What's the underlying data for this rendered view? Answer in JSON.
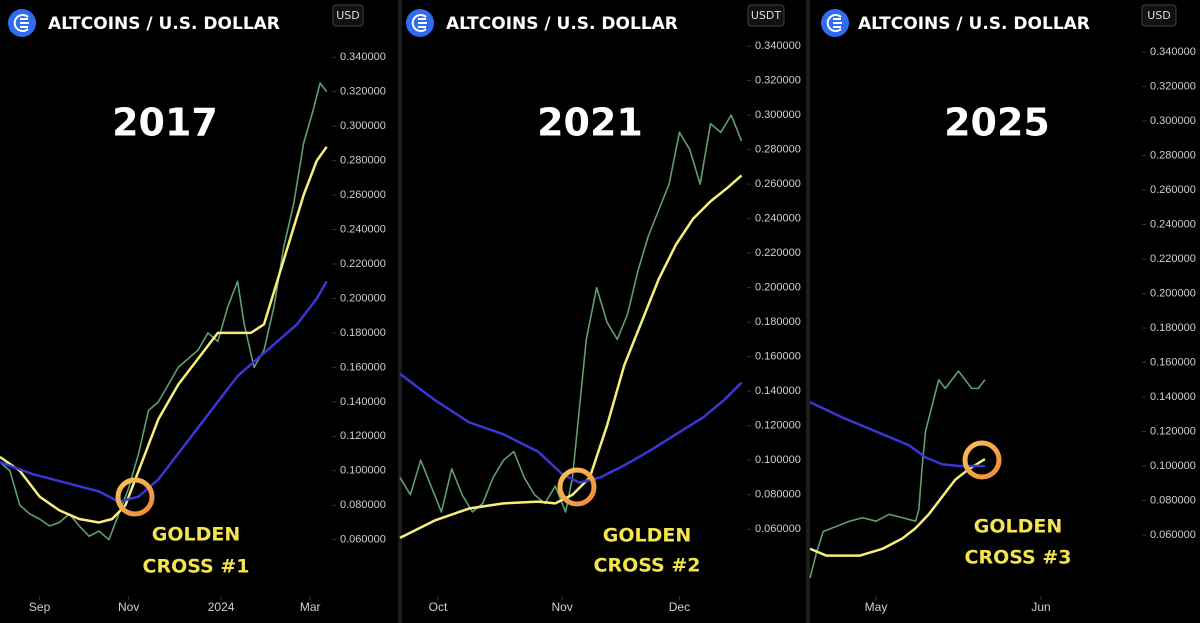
{
  "chart_data": [
    {
      "type": "line",
      "header": "ALTCOINS / U.S. DOLLAR",
      "currency": "USD",
      "title": "2017",
      "annotation": [
        "GOLDEN",
        "CROSS #1"
      ],
      "xlim": [
        0,
        100
      ],
      "ylim": [
        0.025,
        0.35
      ],
      "xticks": [
        {
          "value": 12,
          "label": "Sep"
        },
        {
          "value": 39,
          "label": "Nov"
        },
        {
          "value": 67,
          "label": "2024"
        },
        {
          "value": 94,
          "label": "Mar"
        }
      ],
      "yticks": [
        {
          "value": 0.06,
          "label": "0.060000"
        },
        {
          "value": 0.08,
          "label": "0.080000"
        },
        {
          "value": 0.1,
          "label": "0.100000"
        },
        {
          "value": 0.12,
          "label": "0.120000"
        },
        {
          "value": 0.14,
          "label": "0.140000"
        },
        {
          "value": 0.16,
          "label": "0.160000"
        },
        {
          "value": 0.18,
          "label": "0.180000"
        },
        {
          "value": 0.2,
          "label": "0.200000"
        },
        {
          "value": 0.22,
          "label": "0.220000"
        },
        {
          "value": 0.24,
          "label": "0.240000"
        },
        {
          "value": 0.26,
          "label": "0.260000"
        },
        {
          "value": 0.28,
          "label": "0.280000"
        },
        {
          "value": 0.3,
          "label": "0.300000"
        },
        {
          "value": 0.32,
          "label": "0.320000"
        },
        {
          "value": 0.34,
          "label": "0.340000"
        }
      ],
      "series": [
        {
          "color": "#5f9e6e",
          "x": [
            0,
            3,
            6,
            9,
            12,
            15,
            18,
            21,
            24,
            27,
            30,
            33,
            36,
            39,
            42,
            45,
            48,
            51,
            54,
            57,
            60,
            63,
            66,
            69,
            72,
            74,
            77,
            80,
            83,
            86,
            89,
            92,
            95,
            97,
            99
          ],
          "values": [
            0.105,
            0.1,
            0.08,
            0.075,
            0.072,
            0.068,
            0.07,
            0.075,
            0.068,
            0.062,
            0.065,
            0.06,
            0.075,
            0.09,
            0.11,
            0.135,
            0.14,
            0.15,
            0.16,
            0.165,
            0.17,
            0.18,
            0.175,
            0.195,
            0.21,
            0.185,
            0.16,
            0.17,
            0.195,
            0.23,
            0.255,
            0.29,
            0.31,
            0.325,
            0.32
          ]
        },
        {
          "color": "#f6f07a",
          "x": [
            0,
            6,
            12,
            18,
            24,
            30,
            34,
            38,
            42,
            48,
            54,
            60,
            66,
            72,
            76,
            80,
            84,
            88,
            92,
            96,
            99
          ],
          "values": [
            0.108,
            0.1,
            0.085,
            0.077,
            0.072,
            0.07,
            0.072,
            0.08,
            0.1,
            0.13,
            0.15,
            0.165,
            0.18,
            0.18,
            0.18,
            0.185,
            0.21,
            0.235,
            0.26,
            0.28,
            0.288
          ]
        },
        {
          "color": "#3a36d6",
          "x": [
            0,
            10,
            20,
            30,
            36,
            42,
            48,
            54,
            60,
            66,
            72,
            78,
            84,
            90,
            96,
            99
          ],
          "values": [
            0.105,
            0.098,
            0.093,
            0.088,
            0.082,
            0.085,
            0.095,
            0.11,
            0.125,
            0.14,
            0.155,
            0.165,
            0.175,
            0.185,
            0.2,
            0.21
          ]
        }
      ]
    },
    {
      "type": "line",
      "header": "ALTCOINS / U.S. DOLLAR",
      "currency": "USDT",
      "title": "2021",
      "annotation": [
        "GOLDEN",
        "CROSS #2"
      ],
      "xlim": [
        0,
        100
      ],
      "ylim": [
        0.019,
        0.3435
      ],
      "xticks": [
        {
          "value": 11,
          "label": "Oct"
        },
        {
          "value": 47,
          "label": "Nov"
        },
        {
          "value": 81,
          "label": "Dec"
        }
      ],
      "yticks": [
        {
          "value": 0.06,
          "label": "0.060000"
        },
        {
          "value": 0.08,
          "label": "0.080000"
        },
        {
          "value": 0.1,
          "label": "0.100000"
        },
        {
          "value": 0.12,
          "label": "0.120000"
        },
        {
          "value": 0.14,
          "label": "0.140000"
        },
        {
          "value": 0.16,
          "label": "0.160000"
        },
        {
          "value": 0.18,
          "label": "0.180000"
        },
        {
          "value": 0.2,
          "label": "0.200000"
        },
        {
          "value": 0.22,
          "label": "0.220000"
        },
        {
          "value": 0.24,
          "label": "0.240000"
        },
        {
          "value": 0.26,
          "label": "0.260000"
        },
        {
          "value": 0.28,
          "label": "0.280000"
        },
        {
          "value": 0.3,
          "label": "0.300000"
        },
        {
          "value": 0.32,
          "label": "0.320000"
        },
        {
          "value": 0.34,
          "label": "0.340000"
        }
      ],
      "series": [
        {
          "color": "#5f9e6e",
          "x": [
            0,
            3,
            6,
            9,
            12,
            15,
            18,
            21,
            24,
            27,
            30,
            33,
            36,
            39,
            42,
            45,
            48,
            50,
            52,
            54,
            57,
            60,
            63,
            66,
            69,
            72,
            75,
            78,
            81,
            84,
            87,
            90,
            93,
            96,
            99
          ],
          "values": [
            0.09,
            0.08,
            0.1,
            0.085,
            0.07,
            0.095,
            0.08,
            0.07,
            0.075,
            0.09,
            0.1,
            0.105,
            0.09,
            0.08,
            0.075,
            0.085,
            0.07,
            0.09,
            0.13,
            0.17,
            0.2,
            0.18,
            0.17,
            0.185,
            0.21,
            0.23,
            0.245,
            0.26,
            0.29,
            0.28,
            0.26,
            0.295,
            0.29,
            0.3,
            0.285
          ]
        },
        {
          "color": "#f6f07a",
          "x": [
            0,
            10,
            20,
            30,
            40,
            45,
            50,
            55,
            60,
            65,
            70,
            75,
            80,
            85,
            90,
            95,
            99
          ],
          "values": [
            0.055,
            0.065,
            0.072,
            0.075,
            0.076,
            0.075,
            0.08,
            0.09,
            0.12,
            0.155,
            0.18,
            0.205,
            0.225,
            0.24,
            0.25,
            0.258,
            0.265
          ]
        },
        {
          "color": "#3a36d6",
          "x": [
            0,
            10,
            20,
            30,
            40,
            47,
            52,
            58,
            65,
            72,
            80,
            88,
            94,
            99
          ],
          "values": [
            0.15,
            0.135,
            0.122,
            0.115,
            0.105,
            0.092,
            0.087,
            0.09,
            0.097,
            0.105,
            0.115,
            0.125,
            0.135,
            0.145
          ]
        }
      ]
    },
    {
      "type": "line",
      "header": "ALTCOINS / U.S. DOLLAR",
      "currency": "USD",
      "title": "2025",
      "annotation": [
        "GOLDEN",
        "CROSS #3"
      ],
      "xlim": [
        0,
        100
      ],
      "ylim": [
        0.0223,
        0.347
      ],
      "xticks": [
        {
          "value": 20,
          "label": "May"
        },
        {
          "value": 70,
          "label": "Jun"
        }
      ],
      "yticks": [
        {
          "value": 0.06,
          "label": "0.060000"
        },
        {
          "value": 0.08,
          "label": "0.080000"
        },
        {
          "value": 0.1,
          "label": "0.100000"
        },
        {
          "value": 0.12,
          "label": "0.120000"
        },
        {
          "value": 0.14,
          "label": "0.140000"
        },
        {
          "value": 0.16,
          "label": "0.160000"
        },
        {
          "value": 0.18,
          "label": "0.180000"
        },
        {
          "value": 0.2,
          "label": "0.200000"
        },
        {
          "value": 0.22,
          "label": "0.220000"
        },
        {
          "value": 0.24,
          "label": "0.240000"
        },
        {
          "value": 0.26,
          "label": "0.260000"
        },
        {
          "value": 0.28,
          "label": "0.280000"
        },
        {
          "value": 0.3,
          "label": "0.300000"
        },
        {
          "value": 0.32,
          "label": "0.320000"
        },
        {
          "value": 0.34,
          "label": "0.340000"
        }
      ],
      "series": [
        {
          "color": "#5f9e6e",
          "x": [
            0,
            2,
            4,
            8,
            12,
            16,
            20,
            24,
            28,
            32,
            33,
            34,
            35,
            37,
            39,
            41,
            43,
            45,
            47,
            49,
            51,
            53
          ],
          "values": [
            0.035,
            0.05,
            0.062,
            0.065,
            0.068,
            0.07,
            0.068,
            0.072,
            0.07,
            0.068,
            0.075,
            0.1,
            0.12,
            0.135,
            0.15,
            0.145,
            0.15,
            0.155,
            0.15,
            0.145,
            0.145,
            0.15
          ]
        },
        {
          "color": "#f6f07a",
          "x": [
            0,
            5,
            15,
            22,
            28,
            32,
            36,
            40,
            44,
            48,
            53
          ],
          "values": [
            0.052,
            0.048,
            0.048,
            0.052,
            0.058,
            0.064,
            0.072,
            0.082,
            0.092,
            0.098,
            0.104
          ]
        },
        {
          "color": "#3a36d6",
          "x": [
            0,
            10,
            20,
            30,
            35,
            40,
            45,
            53
          ],
          "values": [
            0.137,
            0.128,
            0.12,
            0.112,
            0.105,
            0.101,
            0.1,
            0.1
          ]
        }
      ]
    }
  ]
}
